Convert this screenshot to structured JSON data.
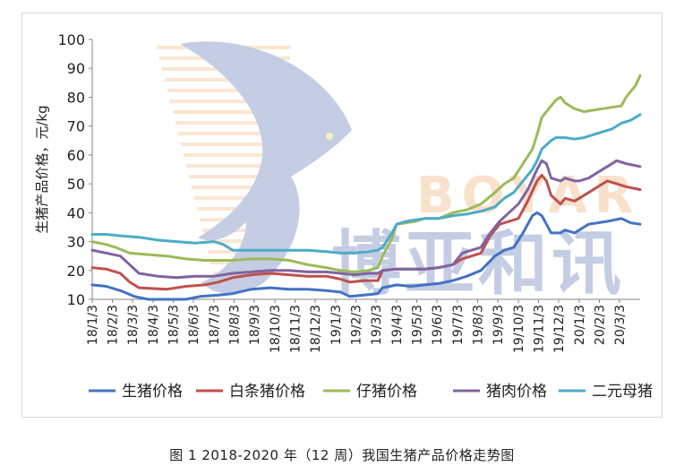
{
  "caption": "图 1 2018-2020 年（12 周）我国生猪产品价格走势图",
  "watermark": {
    "text": "博亚和讯",
    "latin": "BOYAR",
    "icon": "dove-logo-icon"
  },
  "colors": {
    "生猪价格": "#4472c4",
    "白条猪价格": "#c0504d",
    "仔猪价格": "#9bbb59",
    "猪肉价格": "#8064a2",
    "二元母猪": "#4bacc6",
    "axis": "#868686",
    "watermark": "#8a9cc9"
  },
  "chart_data": {
    "type": "line",
    "ylabel": "生猪产品价格，元/kg",
    "ylim": [
      10,
      100
    ],
    "yticks": [
      10,
      20,
      30,
      40,
      50,
      60,
      70,
      80,
      90,
      100
    ],
    "grid": false,
    "legend_position": "bottom",
    "xlim": [
      0,
      117
    ],
    "x_tick_labels": [
      "18/1/3",
      "18/2/3",
      "18/3/3",
      "18/4/3",
      "18/5/3",
      "18/6/3",
      "18/7/3",
      "18/8/3",
      "18/9/3",
      "18/10/3",
      "18/11/3",
      "18/12/3",
      "19/1/3",
      "19/2/3",
      "19/3/3",
      "19/4/3",
      "19/5/3",
      "19/6/3",
      "19/7/3",
      "19/8/3",
      "19/9/3",
      "19/10/3",
      "19/11/3",
      "19/12/3",
      "20/1/3",
      "20/2/3",
      "20/3/3"
    ],
    "x_tick_pos": [
      0,
      4.3,
      8.6,
      13,
      17.3,
      21.6,
      26,
      30.3,
      34.6,
      39,
      43.3,
      47.6,
      52,
      56.3,
      60.6,
      65,
      69.3,
      73.6,
      78,
      82.3,
      86.6,
      91,
      95.3,
      99.6,
      104,
      108.3,
      112.6
    ],
    "series": [
      {
        "name": "生猪价格",
        "points": [
          [
            0,
            15
          ],
          [
            3,
            14.5
          ],
          [
            6,
            13
          ],
          [
            9,
            11
          ],
          [
            12,
            10
          ],
          [
            16,
            10
          ],
          [
            20,
            10
          ],
          [
            23,
            11
          ],
          [
            27,
            11.5
          ],
          [
            30,
            12
          ],
          [
            34,
            13.5
          ],
          [
            38,
            14
          ],
          [
            42,
            13.5
          ],
          [
            46,
            13.5
          ],
          [
            50,
            13
          ],
          [
            53,
            12.5
          ],
          [
            55,
            11
          ],
          [
            58,
            11.5
          ],
          [
            61,
            12
          ],
          [
            62,
            14
          ],
          [
            65,
            15
          ],
          [
            68,
            14.5
          ],
          [
            71,
            15
          ],
          [
            74,
            15.5
          ],
          [
            77,
            16.5
          ],
          [
            80,
            18
          ],
          [
            83,
            20
          ],
          [
            86,
            25
          ],
          [
            88,
            27
          ],
          [
            90,
            28
          ],
          [
            92,
            33
          ],
          [
            94,
            39
          ],
          [
            95,
            40
          ],
          [
            96,
            39
          ],
          [
            97,
            36
          ],
          [
            98,
            33
          ],
          [
            100,
            33
          ],
          [
            101,
            34
          ],
          [
            103,
            33
          ],
          [
            104,
            34
          ],
          [
            106,
            36
          ],
          [
            110,
            37
          ],
          [
            113,
            38
          ],
          [
            115,
            36.5
          ],
          [
            117,
            36
          ]
        ]
      },
      {
        "name": "白条猪价格",
        "points": [
          [
            0,
            21
          ],
          [
            3,
            20.5
          ],
          [
            6,
            19
          ],
          [
            8,
            16
          ],
          [
            10,
            14
          ],
          [
            16,
            13.5
          ],
          [
            20,
            14.5
          ],
          [
            24,
            15
          ],
          [
            27,
            16
          ],
          [
            30,
            17.5
          ],
          [
            34,
            18.5
          ],
          [
            38,
            19
          ],
          [
            42,
            18.5
          ],
          [
            46,
            18
          ],
          [
            50,
            18
          ],
          [
            53,
            17
          ],
          [
            55,
            16
          ],
          [
            58,
            16.5
          ],
          [
            61,
            16.5
          ],
          [
            62,
            20
          ],
          [
            65,
            20.5
          ],
          [
            68,
            20.5
          ],
          [
            71,
            20.5
          ],
          [
            74,
            21
          ],
          [
            77,
            22
          ],
          [
            79,
            24
          ],
          [
            81,
            25
          ],
          [
            83,
            26
          ],
          [
            85,
            32
          ],
          [
            87,
            36
          ],
          [
            89,
            37
          ],
          [
            91,
            38
          ],
          [
            93,
            44
          ],
          [
            95,
            51
          ],
          [
            96,
            53
          ],
          [
            97,
            51
          ],
          [
            98,
            46
          ],
          [
            100,
            43
          ],
          [
            101,
            45
          ],
          [
            103,
            44
          ],
          [
            104,
            45
          ],
          [
            106,
            47
          ],
          [
            108,
            49
          ],
          [
            110,
            51
          ],
          [
            112,
            50
          ],
          [
            114,
            49
          ],
          [
            117,
            48
          ]
        ]
      },
      {
        "name": "仔猪价格",
        "points": [
          [
            0,
            30
          ],
          [
            3,
            29
          ],
          [
            5,
            28
          ],
          [
            8,
            26
          ],
          [
            12,
            25.5
          ],
          [
            16,
            25
          ],
          [
            20,
            24
          ],
          [
            24,
            23.5
          ],
          [
            27,
            23.5
          ],
          [
            30,
            23.5
          ],
          [
            34,
            24
          ],
          [
            38,
            24
          ],
          [
            42,
            23.5
          ],
          [
            46,
            22
          ],
          [
            50,
            21
          ],
          [
            53,
            20
          ],
          [
            56,
            19.5
          ],
          [
            59,
            20
          ],
          [
            61,
            21
          ],
          [
            62,
            25
          ],
          [
            64,
            31
          ],
          [
            65,
            36
          ],
          [
            67,
            36.5
          ],
          [
            69,
            37
          ],
          [
            71,
            38
          ],
          [
            74,
            38
          ],
          [
            77,
            40
          ],
          [
            80,
            41
          ],
          [
            83,
            43
          ],
          [
            86,
            47
          ],
          [
            88,
            50
          ],
          [
            90,
            52
          ],
          [
            92,
            57
          ],
          [
            94,
            62
          ],
          [
            95,
            67
          ],
          [
            96,
            73
          ],
          [
            98,
            77
          ],
          [
            99,
            79
          ],
          [
            100,
            80
          ],
          [
            101,
            78
          ],
          [
            103,
            76
          ],
          [
            105,
            75
          ],
          [
            107,
            75.5
          ],
          [
            109,
            76
          ],
          [
            111,
            76.5
          ],
          [
            113,
            77
          ],
          [
            114,
            80
          ],
          [
            115,
            82
          ],
          [
            116,
            84
          ],
          [
            117,
            87.5
          ]
        ]
      },
      {
        "name": "猪肉价格",
        "points": [
          [
            0,
            27
          ],
          [
            3,
            26
          ],
          [
            6,
            25
          ],
          [
            8,
            22
          ],
          [
            10,
            19
          ],
          [
            14,
            18
          ],
          [
            18,
            17.5
          ],
          [
            22,
            18
          ],
          [
            26,
            18
          ],
          [
            30,
            19
          ],
          [
            34,
            19.5
          ],
          [
            38,
            20
          ],
          [
            42,
            20
          ],
          [
            46,
            19.5
          ],
          [
            50,
            19.5
          ],
          [
            53,
            19
          ],
          [
            56,
            18.5
          ],
          [
            59,
            19
          ],
          [
            61,
            19
          ],
          [
            62,
            20
          ],
          [
            65,
            20.5
          ],
          [
            68,
            20.5
          ],
          [
            71,
            20.5
          ],
          [
            74,
            21
          ],
          [
            77,
            22
          ],
          [
            79,
            26
          ],
          [
            81,
            27
          ],
          [
            83,
            28
          ],
          [
            85,
            33
          ],
          [
            87,
            37
          ],
          [
            89,
            40
          ],
          [
            91,
            43
          ],
          [
            93,
            48
          ],
          [
            95,
            55
          ],
          [
            96,
            58
          ],
          [
            97,
            57
          ],
          [
            98,
            52
          ],
          [
            100,
            51
          ],
          [
            101,
            52
          ],
          [
            103,
            51
          ],
          [
            104,
            51
          ],
          [
            106,
            52
          ],
          [
            108,
            54
          ],
          [
            110,
            56
          ],
          [
            112,
            58
          ],
          [
            114,
            57
          ],
          [
            117,
            56
          ]
        ]
      },
      {
        "name": "二元母猪",
        "points": [
          [
            0,
            32.5
          ],
          [
            3,
            32.5
          ],
          [
            6,
            32
          ],
          [
            10,
            31.5
          ],
          [
            14,
            30.5
          ],
          [
            18,
            30
          ],
          [
            22,
            29.5
          ],
          [
            26,
            30
          ],
          [
            28,
            29
          ],
          [
            30,
            27
          ],
          [
            34,
            27
          ],
          [
            38,
            27
          ],
          [
            42,
            27
          ],
          [
            46,
            27
          ],
          [
            50,
            26.5
          ],
          [
            53,
            26
          ],
          [
            56,
            26
          ],
          [
            59,
            26.5
          ],
          [
            61,
            27
          ],
          [
            62,
            28
          ],
          [
            64,
            33
          ],
          [
            65,
            36
          ],
          [
            67,
            37
          ],
          [
            69,
            37.5
          ],
          [
            71,
            38
          ],
          [
            74,
            38
          ],
          [
            77,
            39
          ],
          [
            80,
            39.5
          ],
          [
            83,
            40.5
          ],
          [
            86,
            42
          ],
          [
            88,
            45
          ],
          [
            90,
            47
          ],
          [
            92,
            51
          ],
          [
            94,
            55
          ],
          [
            95,
            58
          ],
          [
            96,
            62
          ],
          [
            98,
            65
          ],
          [
            99,
            66
          ],
          [
            101,
            66
          ],
          [
            103,
            65.5
          ],
          [
            105,
            66
          ],
          [
            107,
            67
          ],
          [
            109,
            68
          ],
          [
            111,
            69
          ],
          [
            113,
            71
          ],
          [
            115,
            72
          ],
          [
            117,
            74
          ]
        ]
      }
    ]
  }
}
